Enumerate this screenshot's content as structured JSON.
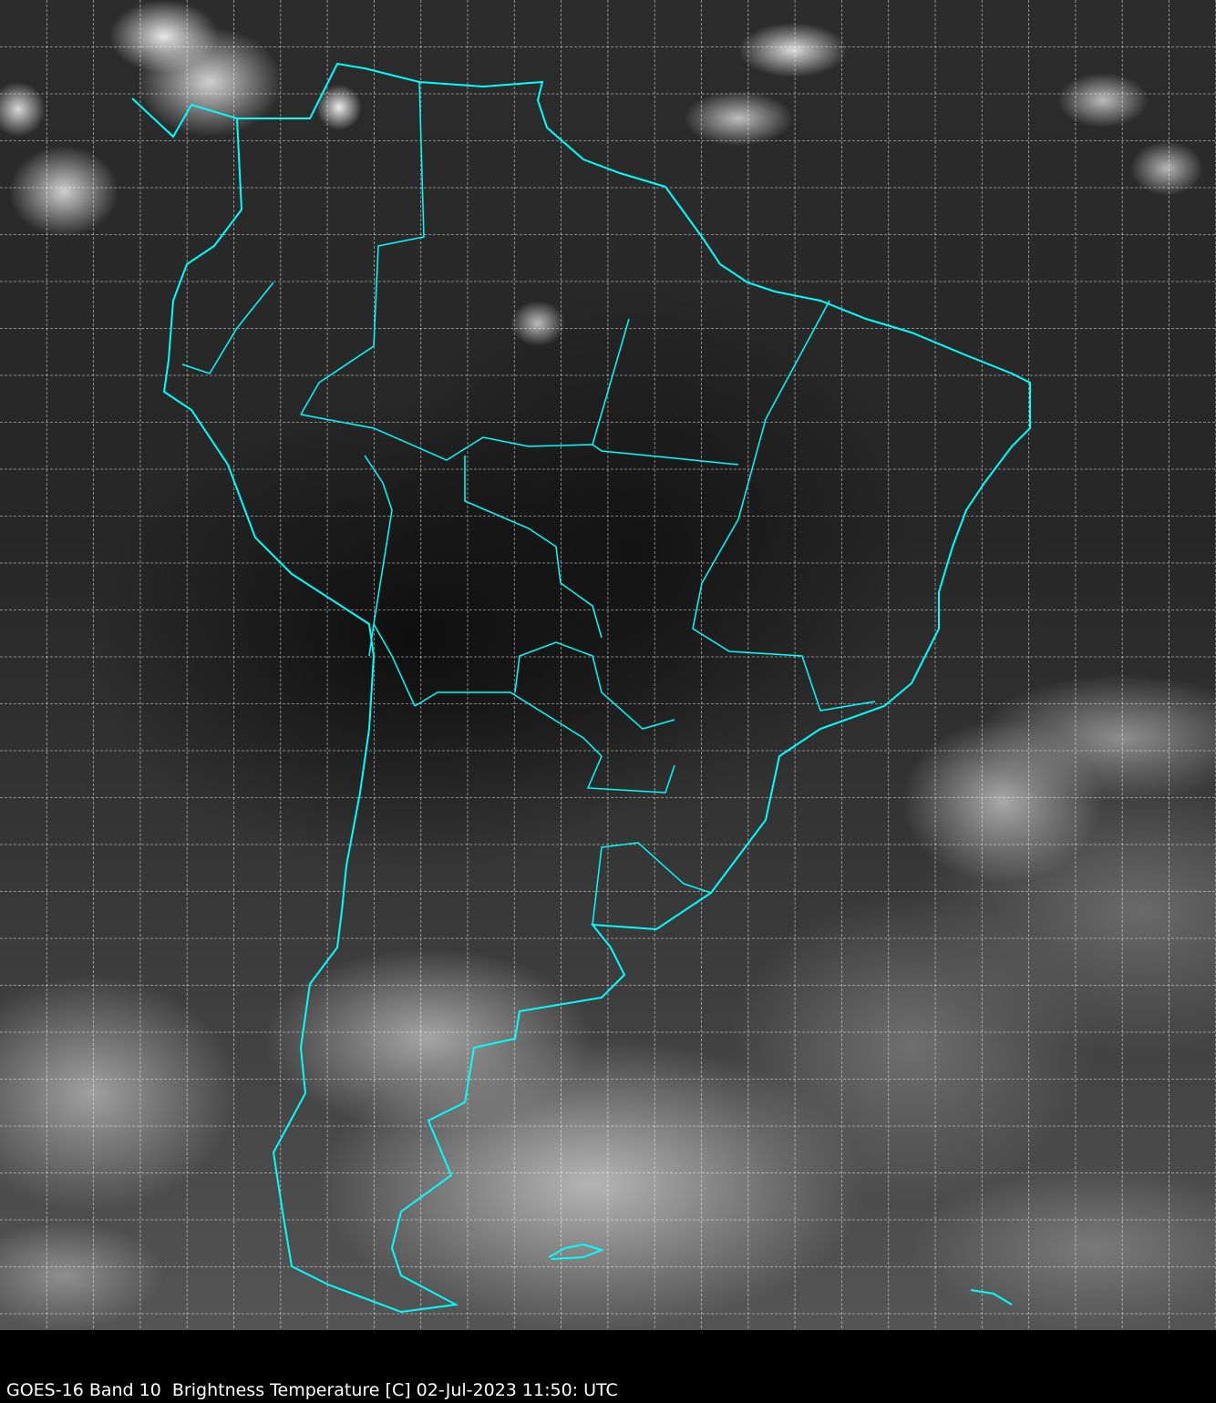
{
  "caption": "GOES-16 Band 10  Brightness Temperature [C] 02-Jul-2023 11:50: UTC",
  "map": {
    "satellite": "GOES-16",
    "band": "Band 10",
    "quantity": "Brightness Temperature [C]",
    "region": "South America",
    "coastline_color": "#00ffff",
    "grid_color": "#ffffff",
    "grid_style": "dashed",
    "background_color": "#000000"
  }
}
